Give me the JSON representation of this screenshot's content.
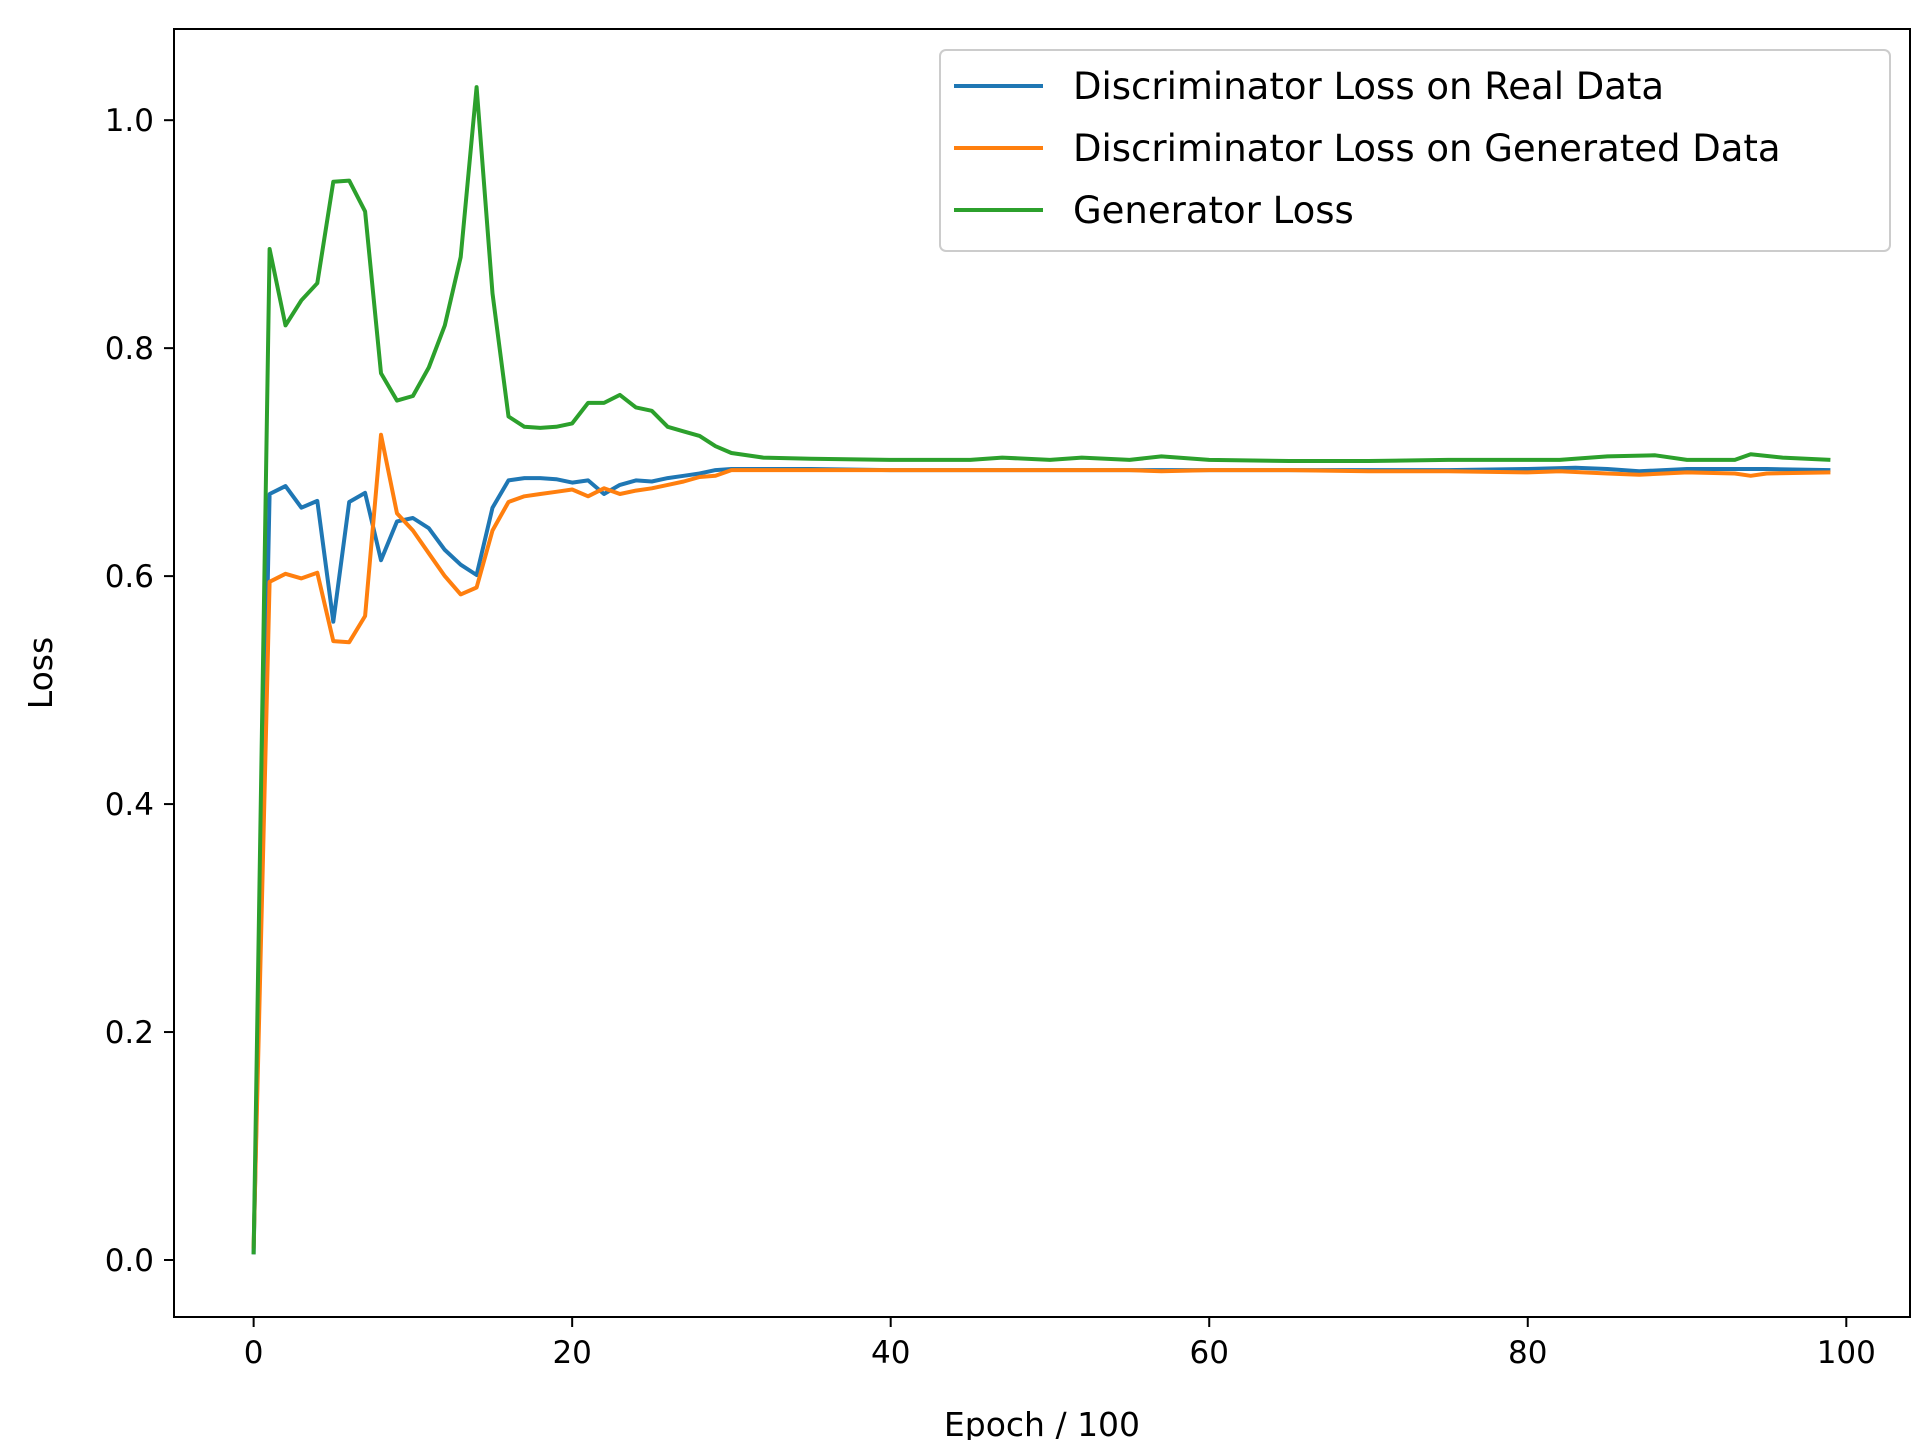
{
  "chart_data": {
    "type": "line",
    "title": "",
    "xlabel": "Epoch / 100",
    "ylabel": "Loss",
    "xlim": [
      -5,
      104
    ],
    "ylim": [
      -0.05,
      1.08
    ],
    "xticks": [
      0,
      20,
      40,
      60,
      80,
      100
    ],
    "yticks": [
      0.0,
      0.2,
      0.4,
      0.6,
      0.8,
      1.0
    ],
    "xtick_labels": [
      "0",
      "20",
      "40",
      "60",
      "80",
      "100"
    ],
    "ytick_labels": [
      "0.0",
      "0.2",
      "0.4",
      "0.6",
      "0.8",
      "1.0"
    ],
    "grid": false,
    "legend_position": "top-right",
    "series": [
      {
        "name": "Discriminator Loss on Real Data",
        "color": "#1f77b4",
        "points": [
          [
            0,
            0.005
          ],
          [
            1,
            0.672
          ],
          [
            2,
            0.679
          ],
          [
            3,
            0.66
          ],
          [
            4,
            0.666
          ],
          [
            5,
            0.56
          ],
          [
            6,
            0.665
          ],
          [
            7,
            0.673
          ],
          [
            8,
            0.614
          ],
          [
            9,
            0.648
          ],
          [
            10,
            0.651
          ],
          [
            11,
            0.642
          ],
          [
            12,
            0.623
          ],
          [
            13,
            0.61
          ],
          [
            14,
            0.601
          ],
          [
            15,
            0.66
          ],
          [
            16,
            0.684
          ],
          [
            17,
            0.686
          ],
          [
            18,
            0.686
          ],
          [
            19,
            0.685
          ],
          [
            20,
            0.682
          ],
          [
            21,
            0.684
          ],
          [
            22,
            0.672
          ],
          [
            23,
            0.68
          ],
          [
            24,
            0.684
          ],
          [
            25,
            0.683
          ],
          [
            26,
            0.686
          ],
          [
            27,
            0.688
          ],
          [
            28,
            0.69
          ],
          [
            29,
            0.693
          ],
          [
            30,
            0.694
          ],
          [
            35,
            0.694
          ],
          [
            40,
            0.693
          ],
          [
            45,
            0.693
          ],
          [
            50,
            0.693
          ],
          [
            55,
            0.693
          ],
          [
            60,
            0.693
          ],
          [
            65,
            0.693
          ],
          [
            70,
            0.693
          ],
          [
            75,
            0.693
          ],
          [
            80,
            0.694
          ],
          [
            83,
            0.695
          ],
          [
            85,
            0.694
          ],
          [
            87,
            0.692
          ],
          [
            90,
            0.694
          ],
          [
            93,
            0.694
          ],
          [
            95,
            0.694
          ],
          [
            99,
            0.693
          ]
        ]
      },
      {
        "name": "Discriminator Loss on Generated Data",
        "color": "#ff7f0e",
        "points": [
          [
            0,
            0.01
          ],
          [
            1,
            0.595
          ],
          [
            2,
            0.602
          ],
          [
            3,
            0.598
          ],
          [
            4,
            0.603
          ],
          [
            5,
            0.543
          ],
          [
            6,
            0.542
          ],
          [
            7,
            0.565
          ],
          [
            8,
            0.724
          ],
          [
            9,
            0.655
          ],
          [
            10,
            0.64
          ],
          [
            11,
            0.62
          ],
          [
            12,
            0.6
          ],
          [
            13,
            0.584
          ],
          [
            14,
            0.59
          ],
          [
            15,
            0.64
          ],
          [
            16,
            0.665
          ],
          [
            17,
            0.67
          ],
          [
            18,
            0.672
          ],
          [
            19,
            0.674
          ],
          [
            20,
            0.676
          ],
          [
            21,
            0.67
          ],
          [
            22,
            0.677
          ],
          [
            23,
            0.672
          ],
          [
            24,
            0.675
          ],
          [
            25,
            0.677
          ],
          [
            26,
            0.68
          ],
          [
            27,
            0.683
          ],
          [
            28,
            0.687
          ],
          [
            29,
            0.688
          ],
          [
            30,
            0.693
          ],
          [
            35,
            0.693
          ],
          [
            40,
            0.693
          ],
          [
            45,
            0.693
          ],
          [
            50,
            0.693
          ],
          [
            55,
            0.693
          ],
          [
            57,
            0.692
          ],
          [
            60,
            0.693
          ],
          [
            65,
            0.693
          ],
          [
            70,
            0.692
          ],
          [
            75,
            0.692
          ],
          [
            80,
            0.691
          ],
          [
            82,
            0.692
          ],
          [
            85,
            0.69
          ],
          [
            87,
            0.689
          ],
          [
            90,
            0.691
          ],
          [
            93,
            0.69
          ],
          [
            94,
            0.688
          ],
          [
            95,
            0.69
          ],
          [
            99,
            0.691
          ]
        ]
      },
      {
        "name": "Generator Loss",
        "color": "#2ca02c",
        "points": [
          [
            0,
            0.005
          ],
          [
            1,
            0.887
          ],
          [
            2,
            0.82
          ],
          [
            3,
            0.842
          ],
          [
            4,
            0.857
          ],
          [
            5,
            0.946
          ],
          [
            6,
            0.947
          ],
          [
            7,
            0.92
          ],
          [
            8,
            0.778
          ],
          [
            9,
            0.754
          ],
          [
            10,
            0.758
          ],
          [
            11,
            0.783
          ],
          [
            12,
            0.82
          ],
          [
            13,
            0.88
          ],
          [
            14,
            1.029
          ],
          [
            15,
            0.848
          ],
          [
            16,
            0.74
          ],
          [
            17,
            0.731
          ],
          [
            18,
            0.73
          ],
          [
            19,
            0.731
          ],
          [
            20,
            0.734
          ],
          [
            21,
            0.752
          ],
          [
            22,
            0.752
          ],
          [
            23,
            0.759
          ],
          [
            24,
            0.748
          ],
          [
            25,
            0.745
          ],
          [
            26,
            0.731
          ],
          [
            27,
            0.727
          ],
          [
            28,
            0.723
          ],
          [
            29,
            0.714
          ],
          [
            30,
            0.708
          ],
          [
            32,
            0.704
          ],
          [
            35,
            0.703
          ],
          [
            40,
            0.702
          ],
          [
            45,
            0.702
          ],
          [
            47,
            0.704
          ],
          [
            50,
            0.702
          ],
          [
            52,
            0.704
          ],
          [
            55,
            0.702
          ],
          [
            57,
            0.705
          ],
          [
            60,
            0.702
          ],
          [
            65,
            0.701
          ],
          [
            70,
            0.701
          ],
          [
            75,
            0.702
          ],
          [
            80,
            0.702
          ],
          [
            82,
            0.702
          ],
          [
            85,
            0.705
          ],
          [
            88,
            0.706
          ],
          [
            90,
            0.702
          ],
          [
            93,
            0.702
          ],
          [
            94,
            0.707
          ],
          [
            96,
            0.704
          ],
          [
            99,
            0.702
          ]
        ]
      }
    ]
  }
}
